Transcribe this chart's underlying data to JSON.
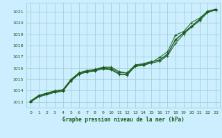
{
  "title": "Graphe pression niveau de la mer (hPa)",
  "bg_color": "#cceeff",
  "grid_color": "#99cccc",
  "line_color": "#1a5c1a",
  "text_color": "#1a5c1a",
  "xlim": [
    -0.5,
    23.5
  ],
  "ylim": [
    1012.5,
    1021.8
  ],
  "xticks": [
    0,
    1,
    2,
    3,
    4,
    5,
    6,
    7,
    8,
    9,
    10,
    11,
    12,
    13,
    14,
    15,
    16,
    17,
    18,
    19,
    20,
    21,
    22,
    23
  ],
  "yticks": [
    1013,
    1014,
    1015,
    1016,
    1017,
    1018,
    1019,
    1020,
    1021
  ],
  "line1": [
    1013.1,
    1013.6,
    1013.8,
    1014.0,
    1014.1,
    1015.0,
    1015.6,
    1015.8,
    1015.9,
    1016.1,
    1016.1,
    1015.7,
    1015.6,
    1016.3,
    1016.4,
    1016.6,
    1016.7,
    1017.2,
    1018.5,
    1019.1,
    1019.7,
    1020.3,
    1021.0,
    1021.2
  ],
  "line2": [
    1013.05,
    1013.55,
    1013.75,
    1013.95,
    1014.05,
    1014.95,
    1015.55,
    1015.75,
    1015.85,
    1016.05,
    1016.0,
    1015.6,
    1015.55,
    1016.25,
    1016.35,
    1016.55,
    1016.75,
    1017.25,
    1018.55,
    1019.15,
    1019.75,
    1020.35,
    1021.05,
    1021.25
  ],
  "line3": [
    1013.05,
    1013.5,
    1013.7,
    1013.9,
    1014.0,
    1014.9,
    1015.5,
    1015.7,
    1015.8,
    1016.0,
    1015.9,
    1015.5,
    1015.45,
    1016.2,
    1016.3,
    1016.5,
    1016.95,
    1017.45,
    1018.95,
    1019.25,
    1020.05,
    1020.45,
    1021.05,
    1021.2
  ],
  "line4": [
    1013.0,
    1013.45,
    1013.65,
    1013.85,
    1013.95,
    1014.85,
    1015.45,
    1015.65,
    1015.75,
    1015.95,
    1015.85,
    1015.45,
    1015.4,
    1016.15,
    1016.25,
    1016.45,
    1016.6,
    1017.1,
    1018.2,
    1019.0,
    1019.65,
    1020.2,
    1020.95,
    1021.15
  ]
}
